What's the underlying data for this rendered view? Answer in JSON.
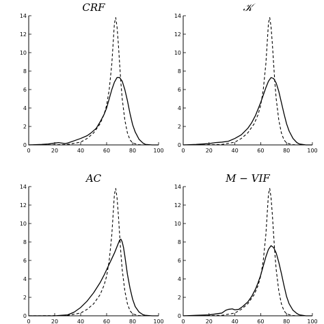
{
  "chart_data": [
    {
      "type": "line",
      "title": "CRF",
      "xlim": [
        0,
        100
      ],
      "ylim": [
        0,
        14
      ],
      "xticks": [
        0,
        20,
        40,
        60,
        80,
        100
      ],
      "yticks": [
        0,
        2,
        4,
        6,
        8,
        10,
        12,
        14
      ],
      "series": [
        {
          "style": "solid",
          "x": [
            0,
            10,
            15,
            20,
            23,
            28,
            30,
            35,
            40,
            45,
            48,
            52,
            55,
            58,
            60,
            62,
            64,
            66,
            68,
            70,
            72,
            74,
            76,
            78,
            80,
            82,
            85,
            88,
            90,
            95,
            100
          ],
          "y": [
            0,
            0.05,
            0.1,
            0.2,
            0.25,
            0.15,
            0.2,
            0.45,
            0.7,
            1.0,
            1.3,
            1.8,
            2.5,
            3.3,
            4.0,
            5.0,
            6.0,
            6.8,
            7.3,
            7.3,
            6.9,
            6.0,
            4.8,
            3.4,
            2.2,
            1.4,
            0.6,
            0.2,
            0.05,
            0,
            0
          ]
        },
        {
          "style": "dashed",
          "x": [
            0,
            20,
            30,
            40,
            45,
            50,
            55,
            58,
            60,
            62,
            64,
            65,
            66,
            67,
            68,
            69,
            70,
            71,
            72,
            74,
            76,
            78,
            80,
            85,
            90,
            100
          ],
          "y": [
            0,
            0.02,
            0.05,
            0.3,
            0.7,
            1.3,
            2.3,
            3.3,
            4.3,
            6.0,
            8.8,
            11.0,
            13.2,
            13.8,
            12.8,
            11.0,
            8.8,
            6.7,
            5.0,
            2.7,
            1.3,
            0.55,
            0.2,
            0.02,
            0,
            0
          ]
        }
      ]
    },
    {
      "type": "line",
      "title": "𝒦",
      "xlim": [
        0,
        100
      ],
      "ylim": [
        0,
        14
      ],
      "xticks": [
        0,
        20,
        40,
        60,
        80,
        100
      ],
      "yticks": [
        0,
        2,
        4,
        6,
        8,
        10,
        12,
        14
      ],
      "series": [
        {
          "style": "solid",
          "x": [
            0,
            10,
            20,
            25,
            30,
            35,
            40,
            45,
            50,
            53,
            56,
            58,
            60,
            62,
            64,
            66,
            68,
            70,
            72,
            74,
            76,
            78,
            80,
            82,
            85,
            88,
            90,
            95,
            100
          ],
          "y": [
            0,
            0.05,
            0.15,
            0.25,
            0.3,
            0.4,
            0.7,
            1.1,
            1.8,
            2.4,
            3.2,
            3.9,
            4.6,
            5.4,
            6.2,
            6.9,
            7.3,
            7.2,
            6.7,
            5.8,
            4.6,
            3.4,
            2.3,
            1.5,
            0.7,
            0.25,
            0.1,
            0,
            0
          ]
        },
        {
          "style": "dashed",
          "x": [
            0,
            20,
            30,
            40,
            45,
            50,
            55,
            58,
            60,
            62,
            64,
            65,
            66,
            67,
            68,
            69,
            70,
            71,
            72,
            74,
            76,
            78,
            80,
            85,
            90,
            100
          ],
          "y": [
            0,
            0.02,
            0.05,
            0.3,
            0.7,
            1.3,
            2.3,
            3.3,
            4.3,
            6.0,
            8.8,
            11.0,
            13.2,
            13.8,
            12.8,
            11.0,
            8.8,
            6.7,
            5.0,
            2.7,
            1.3,
            0.55,
            0.2,
            0.02,
            0,
            0
          ]
        }
      ]
    },
    {
      "type": "line",
      "title": "AC",
      "xlim": [
        0,
        100
      ],
      "ylim": [
        0,
        14
      ],
      "xticks": [
        0,
        20,
        40,
        60,
        80,
        100
      ],
      "yticks": [
        0,
        2,
        4,
        6,
        8,
        10,
        12,
        14
      ],
      "series": [
        {
          "style": "solid",
          "x": [
            0,
            20,
            25,
            30,
            35,
            40,
            45,
            50,
            55,
            58,
            60,
            62,
            64,
            66,
            68,
            70,
            71,
            72,
            73,
            74,
            75,
            76,
            78,
            80,
            82,
            85,
            88,
            90,
            95,
            100
          ],
          "y": [
            0,
            0,
            0.05,
            0.1,
            0.4,
            0.9,
            1.6,
            2.5,
            3.6,
            4.4,
            5.0,
            5.6,
            6.2,
            6.8,
            7.5,
            8.2,
            8.3,
            8.0,
            7.4,
            6.5,
            5.5,
            4.5,
            3.0,
            1.8,
            1.0,
            0.4,
            0.12,
            0.05,
            0,
            0
          ]
        },
        {
          "style": "dashed",
          "x": [
            0,
            20,
            30,
            40,
            45,
            50,
            55,
            58,
            60,
            62,
            64,
            65,
            66,
            67,
            68,
            69,
            70,
            71,
            72,
            74,
            76,
            78,
            80,
            85,
            90,
            100
          ],
          "y": [
            0,
            0.02,
            0.05,
            0.3,
            0.7,
            1.3,
            2.3,
            3.3,
            4.3,
            6.0,
            8.8,
            11.0,
            13.2,
            13.8,
            12.8,
            11.0,
            8.8,
            6.7,
            5.0,
            2.7,
            1.3,
            0.55,
            0.2,
            0.02,
            0,
            0
          ]
        }
      ]
    },
    {
      "type": "line",
      "title": "M − VIF",
      "xlim": [
        0,
        100
      ],
      "ylim": [
        0,
        14
      ],
      "xticks": [
        0,
        20,
        40,
        60,
        80,
        100
      ],
      "yticks": [
        0,
        2,
        4,
        6,
        8,
        10,
        12,
        14
      ],
      "series": [
        {
          "style": "solid",
          "x": [
            0,
            10,
            20,
            25,
            30,
            33,
            35,
            38,
            40,
            43,
            46,
            50,
            53,
            56,
            58,
            60,
            62,
            64,
            66,
            68,
            70,
            72,
            74,
            76,
            78,
            80,
            82,
            85,
            88,
            90,
            95,
            100
          ],
          "y": [
            0,
            0.05,
            0.1,
            0.2,
            0.3,
            0.6,
            0.7,
            0.75,
            0.65,
            0.7,
            1.0,
            1.5,
            2.1,
            2.9,
            3.6,
            4.4,
            5.4,
            6.4,
            7.2,
            7.6,
            7.4,
            6.8,
            5.8,
            4.6,
            3.3,
            2.1,
            1.3,
            0.6,
            0.25,
            0.1,
            0,
            0
          ]
        },
        {
          "style": "dashed",
          "x": [
            0,
            20,
            30,
            40,
            45,
            50,
            55,
            58,
            60,
            62,
            64,
            65,
            66,
            67,
            68,
            69,
            70,
            71,
            72,
            74,
            76,
            78,
            80,
            85,
            90,
            100
          ],
          "y": [
            0,
            0.02,
            0.05,
            0.3,
            0.7,
            1.3,
            2.3,
            3.3,
            4.3,
            6.0,
            8.8,
            11.0,
            13.2,
            13.8,
            12.8,
            11.0,
            8.8,
            6.7,
            5.0,
            2.7,
            1.3,
            0.55,
            0.2,
            0.02,
            0,
            0
          ]
        }
      ]
    }
  ]
}
